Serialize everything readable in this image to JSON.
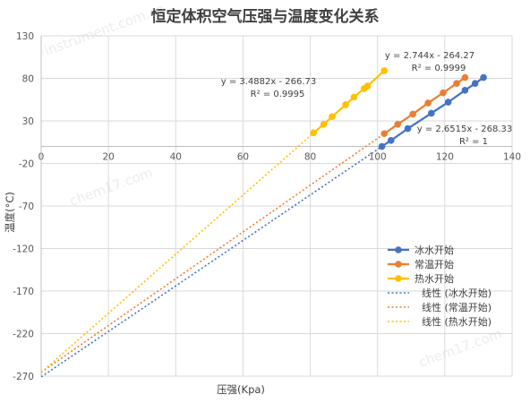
{
  "chart_data": {
    "type": "scatter",
    "title": "恒定体积空气压强与温度变化关系",
    "xlabel": "压强(Kpa)",
    "ylabel": "温度(°C)",
    "xlim": [
      0,
      140
    ],
    "ylim": [
      -270,
      130
    ],
    "x_ticks": [
      "0",
      "20",
      "40",
      "60",
      "80",
      "100",
      "120",
      "140"
    ],
    "y_ticks": [
      "130",
      "80",
      "30",
      "-20",
      "-70",
      "-120",
      "-170",
      "-220",
      "-270"
    ],
    "grid": true,
    "legend_position": "right",
    "series": [
      {
        "name": "冰水开始",
        "color": "#4472C4",
        "points": [
          {
            "x": 101.3,
            "y": 0
          },
          {
            "x": 104,
            "y": 7
          },
          {
            "x": 109,
            "y": 21
          },
          {
            "x": 116,
            "y": 39
          },
          {
            "x": 121,
            "y": 52
          },
          {
            "x": 126,
            "y": 66
          },
          {
            "x": 129,
            "y": 74
          },
          {
            "x": 131.5,
            "y": 81
          }
        ],
        "trend_name": "线性 (冰水开始)",
        "equation": "y = 2.6515x - 268.33",
        "r2": "R² = 1"
      },
      {
        "name": "常温开始",
        "color": "#ED7D31",
        "points": [
          {
            "x": 102,
            "y": 15
          },
          {
            "x": 106,
            "y": 26
          },
          {
            "x": 110.5,
            "y": 38
          },
          {
            "x": 115,
            "y": 51
          },
          {
            "x": 119.5,
            "y": 63
          },
          {
            "x": 123.5,
            "y": 74
          },
          {
            "x": 126,
            "y": 81
          }
        ],
        "trend_name": "线性 (常温开始)",
        "equation": "y = 2.744x - 264.27",
        "r2": "R² = 0.9999"
      },
      {
        "name": "热水开始",
        "color": "#FFC000",
        "points": [
          {
            "x": 81,
            "y": 16
          },
          {
            "x": 84,
            "y": 26
          },
          {
            "x": 86.5,
            "y": 35
          },
          {
            "x": 90.5,
            "y": 49
          },
          {
            "x": 93,
            "y": 58
          },
          {
            "x": 96,
            "y": 68
          },
          {
            "x": 97,
            "y": 71
          },
          {
            "x": 102,
            "y": 89
          }
        ],
        "trend_name": "线性 (热水开始)",
        "equation": "y = 3.4882x - 266.73",
        "r2": "R² = 0.9995"
      }
    ]
  },
  "watermarks": [
    "instrument.com.cn",
    "chem17.com",
    "chem17.com"
  ]
}
